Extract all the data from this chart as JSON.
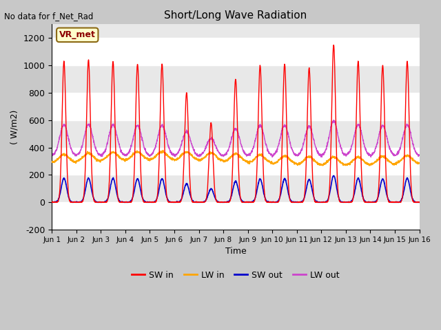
{
  "title": "Short/Long Wave Radiation",
  "xlabel": "Time",
  "ylabel": "( W/m2)",
  "ylim": [
    -200,
    1300
  ],
  "xlim": [
    0,
    15
  ],
  "yticks": [
    -200,
    0,
    200,
    400,
    600,
    800,
    1000,
    1200
  ],
  "ytick_labels": [
    "-200",
    "0",
    "200",
    "400",
    "600",
    "800",
    "1000",
    "1200"
  ],
  "xtick_positions": [
    0,
    1,
    2,
    3,
    4,
    5,
    6,
    7,
    8,
    9,
    10,
    11,
    12,
    13,
    14,
    15
  ],
  "xtick_labels": [
    "Jun 1",
    "Jun 2",
    "Jun 3",
    "Jun 4",
    "Jun 5",
    "Jun 6",
    "Jun 7",
    "Jun 8",
    "Jun 9",
    "Jun 10",
    "Jun 11",
    "Jun 12",
    "Jun 13",
    "Jun 14",
    "Jun 15",
    "Jun 16"
  ],
  "colors": {
    "SW_in": "#ff0000",
    "LW_in": "#ffa500",
    "SW_out": "#0000cc",
    "LW_out": "#cc44cc"
  },
  "legend_labels": [
    "SW in",
    "LW in",
    "SW out",
    "LW out"
  ],
  "annotation_text": "No data for f_Net_Rad",
  "box_label": "VR_met",
  "SW_in_peaks": [
    1030,
    1040,
    1030,
    1010,
    1010,
    800,
    580,
    900,
    1000,
    1010,
    980,
    1150,
    1030,
    1000,
    1030
  ],
  "n_days": 15,
  "points_per_day": 144,
  "figsize": [
    6.4,
    4.8
  ],
  "dpi": 100
}
